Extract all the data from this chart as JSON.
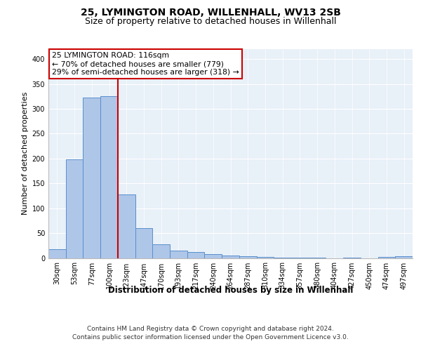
{
  "title1": "25, LYMINGTON ROAD, WILLENHALL, WV13 2SB",
  "title2": "Size of property relative to detached houses in Willenhall",
  "xlabel": "Distribution of detached houses by size in Willenhall",
  "ylabel": "Number of detached properties",
  "categories": [
    "30sqm",
    "53sqm",
    "77sqm",
    "100sqm",
    "123sqm",
    "147sqm",
    "170sqm",
    "193sqm",
    "217sqm",
    "240sqm",
    "264sqm",
    "287sqm",
    "310sqm",
    "334sqm",
    "357sqm",
    "380sqm",
    "404sqm",
    "427sqm",
    "450sqm",
    "474sqm",
    "497sqm"
  ],
  "values": [
    17,
    198,
    322,
    325,
    128,
    60,
    27,
    15,
    12,
    8,
    5,
    3,
    2,
    1,
    1,
    1,
    0,
    1,
    0,
    2,
    3
  ],
  "bar_color": "#aec6e8",
  "bar_edge_color": "#5a8fcc",
  "vline_color": "#cc0000",
  "annotation_text": "25 LYMINGTON ROAD: 116sqm\n← 70% of detached houses are smaller (779)\n29% of semi-detached houses are larger (318) →",
  "annotation_box_color": "#ffffff",
  "annotation_box_edge_color": "#cc0000",
  "ylim": [
    0,
    420
  ],
  "yticks": [
    0,
    50,
    100,
    150,
    200,
    250,
    300,
    350,
    400
  ],
  "footer1": "Contains HM Land Registry data © Crown copyright and database right 2024.",
  "footer2": "Contains public sector information licensed under the Open Government Licence v3.0.",
  "bg_color": "#e8f0f8",
  "fig_bg_color": "#ffffff",
  "title1_fontsize": 10,
  "title2_fontsize": 9,
  "tick_fontsize": 7,
  "ylabel_fontsize": 8,
  "xlabel_fontsize": 8.5,
  "footer_fontsize": 6.5
}
